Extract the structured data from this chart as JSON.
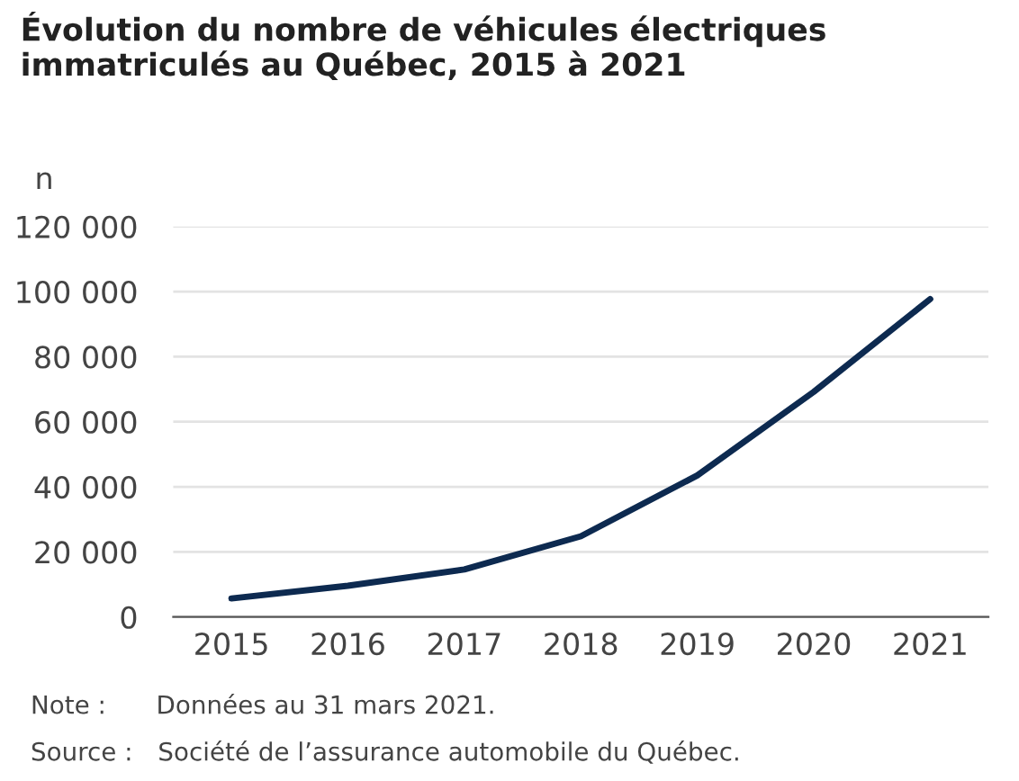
{
  "chart_data": {
    "type": "line",
    "title": "Évolution du nombre de véhicules électriques\nimmatriculés au Québec, 2015 à 2021",
    "ylabel": "n",
    "categories": [
      "2015",
      "2016",
      "2017",
      "2018",
      "2019",
      "2020",
      "2021"
    ],
    "series": [
      {
        "color": "#0d2a50",
        "values": [
          5700,
          9600,
          14600,
          24800,
          43500,
          69200,
          97700
        ]
      }
    ],
    "ylim": [
      0,
      120000
    ],
    "yticks": [
      0,
      {
        "value": 20000,
        "label": "20 000"
      },
      {
        "value": 40000,
        "label": "40 000"
      },
      {
        "value": 60000,
        "label": "60 000"
      },
      {
        "value": 80000,
        "label": "80 000"
      },
      {
        "value": 100000,
        "label": "100 000"
      },
      {
        "value": 120000,
        "label": "120 000"
      }
    ],
    "grid": "y",
    "marker": "none",
    "line_style": "solid",
    "annotations": [
      "Note :  Données au 31 mars 2021.",
      "Source : Société de l’assurance automobile du Québec."
    ]
  }
}
